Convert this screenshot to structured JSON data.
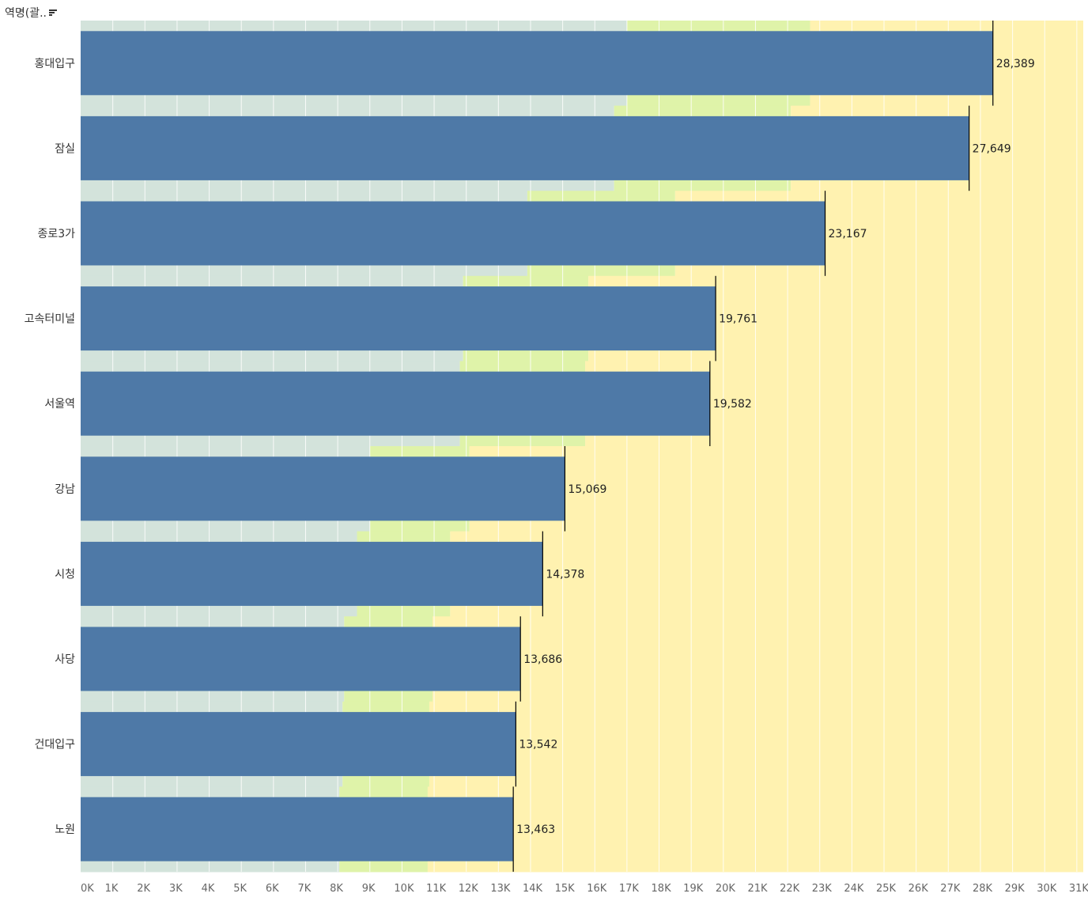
{
  "header": {
    "label": "역명(괄..",
    "sort_icon": "sort-descending-icon"
  },
  "colors": {
    "bar": "#4e79a7",
    "band_low": "#d3e3db",
    "band_mid": "#dff3a9",
    "band_high": "#fff2b0",
    "reference_line": "#000000",
    "gridline": "#ffffff"
  },
  "chart_data": {
    "type": "bar",
    "orientation": "horizontal",
    "categories": [
      "홍대입구",
      "잠실",
      "종로3가",
      "고속터미널",
      "서울역",
      "강남",
      "시청",
      "사당",
      "건대입구",
      "노원"
    ],
    "values": [
      28389,
      27649,
      23167,
      19761,
      19582,
      15069,
      14378,
      13686,
      13542,
      13463
    ],
    "value_labels": [
      "28,389",
      "27,649",
      "23,167",
      "19,761",
      "19,582",
      "15,069",
      "14,378",
      "13,686",
      "13,542",
      "13,463"
    ],
    "xlim": [
      0,
      31200
    ],
    "xticks": [
      0,
      1000,
      2000,
      3000,
      4000,
      5000,
      6000,
      7000,
      8000,
      9000,
      10000,
      11000,
      12000,
      13000,
      14000,
      15000,
      16000,
      17000,
      18000,
      19000,
      20000,
      21000,
      22000,
      23000,
      24000,
      25000,
      26000,
      27000,
      28000,
      29000,
      30000,
      31000
    ],
    "xtick_labels": [
      "0K",
      "1K",
      "2K",
      "3K",
      "4K",
      "5K",
      "6K",
      "7K",
      "8K",
      "9K",
      "10K",
      "11K",
      "12K",
      "13K",
      "14K",
      "15K",
      "16K",
      "17K",
      "18K",
      "19K",
      "20K",
      "21K",
      "22K",
      "23K",
      "24K",
      "25K",
      "26K",
      "27K",
      "28K",
      "29K",
      "30K",
      "31K"
    ],
    "distribution_bands": [
      {
        "low_end": 17000,
        "mid_end": 22700
      },
      {
        "low_end": 16600,
        "mid_end": 22100
      },
      {
        "low_end": 13900,
        "mid_end": 18500
      },
      {
        "low_end": 11900,
        "mid_end": 15800
      },
      {
        "low_end": 11800,
        "mid_end": 15700
      },
      {
        "low_end": 9000,
        "mid_end": 12100
      },
      {
        "low_end": 8600,
        "mid_end": 11500
      },
      {
        "low_end": 8200,
        "mid_end": 10950
      },
      {
        "low_end": 8150,
        "mid_end": 10850
      },
      {
        "low_end": 8050,
        "mid_end": 10800
      }
    ],
    "grid": true
  }
}
